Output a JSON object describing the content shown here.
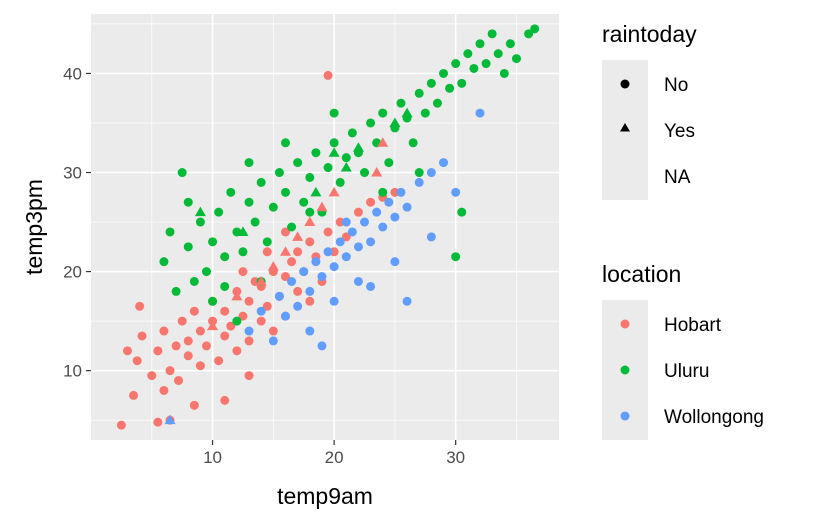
{
  "chart_data": {
    "type": "scatter",
    "title": "",
    "xlabel": "temp9am",
    "ylabel": "temp3pm",
    "xlim": [
      0,
      38.5
    ],
    "ylim": [
      3,
      46
    ],
    "xticks": [
      10,
      20,
      30
    ],
    "yticks": [
      10,
      20,
      30,
      40
    ],
    "grid": true,
    "legend_placement": "right",
    "color_legend": {
      "title": "location",
      "entries": [
        {
          "label": "Hobart",
          "color": "#F8766D"
        },
        {
          "label": "Uluru",
          "color": "#00BA38"
        },
        {
          "label": "Wollongong",
          "color": "#619CFF"
        }
      ]
    },
    "shape_legend": {
      "title": "raintoday",
      "entries": [
        {
          "label": "No",
          "shape": "circle"
        },
        {
          "label": "Yes",
          "shape": "triangle"
        },
        {
          "label": "NA",
          "shape": "none"
        }
      ]
    },
    "series": [
      {
        "name": "Hobart",
        "color": "#F8766D",
        "points": [
          [
            2.5,
            4.5
          ],
          [
            3.5,
            7.5
          ],
          [
            3.8,
            11
          ],
          [
            4.2,
            13.5
          ],
          [
            5,
            9.5
          ],
          [
            5.5,
            12
          ],
          [
            6,
            14
          ],
          [
            6.5,
            10
          ],
          [
            6.5,
            5
          ],
          [
            7,
            12.5
          ],
          [
            7.2,
            9
          ],
          [
            7.5,
            15
          ],
          [
            8,
            11.5
          ],
          [
            8,
            13
          ],
          [
            8.5,
            16
          ],
          [
            9,
            10.5
          ],
          [
            9,
            14
          ],
          [
            9.5,
            12.5
          ],
          [
            10,
            15
          ],
          [
            10,
            17
          ],
          [
            10.5,
            11
          ],
          [
            11,
            13.5
          ],
          [
            11,
            16
          ],
          [
            11.5,
            14.5
          ],
          [
            12,
            18
          ],
          [
            12,
            12
          ],
          [
            12.5,
            15.5
          ],
          [
            13,
            17
          ],
          [
            13,
            13
          ],
          [
            13.5,
            19
          ],
          [
            14,
            15
          ],
          [
            14,
            18.5
          ],
          [
            14.5,
            16.5
          ],
          [
            15,
            20
          ],
          [
            15,
            14
          ],
          [
            15.5,
            17.5
          ],
          [
            16,
            19.5
          ],
          [
            16,
            15.5
          ],
          [
            16.5,
            21
          ],
          [
            17,
            18
          ],
          [
            17,
            22
          ],
          [
            17.5,
            20
          ],
          [
            18,
            17
          ],
          [
            18,
            23
          ],
          [
            18.5,
            21.5
          ],
          [
            19,
            19
          ],
          [
            19.5,
            24
          ],
          [
            20,
            22
          ],
          [
            20.5,
            25
          ],
          [
            21,
            23.5
          ],
          [
            22,
            26
          ],
          [
            23,
            27
          ],
          [
            24,
            27.5
          ],
          [
            25,
            28
          ],
          [
            19.5,
            39.8
          ],
          [
            11,
            7
          ],
          [
            5.5,
            4.8
          ],
          [
            4,
            16.5
          ],
          [
            3,
            12
          ],
          [
            6,
            8
          ],
          [
            8.5,
            6.5
          ],
          [
            12.5,
            20
          ],
          [
            14.5,
            22
          ],
          [
            16,
            24
          ],
          [
            13,
            9.5
          ]
        ]
      },
      {
        "name": "Uluru",
        "color": "#00BA38",
        "points": [
          [
            6,
            21
          ],
          [
            6.5,
            24
          ],
          [
            7,
            18
          ],
          [
            8,
            22.5
          ],
          [
            8.5,
            19
          ],
          [
            9,
            25
          ],
          [
            9.5,
            20
          ],
          [
            10,
            23
          ],
          [
            10.5,
            26
          ],
          [
            11,
            21.5
          ],
          [
            11.5,
            28
          ],
          [
            12,
            24
          ],
          [
            12.5,
            22
          ],
          [
            13,
            27
          ],
          [
            13.5,
            25
          ],
          [
            14,
            29
          ],
          [
            14.5,
            23
          ],
          [
            15,
            26.5
          ],
          [
            15.5,
            30
          ],
          [
            16,
            28
          ],
          [
            16.5,
            24.5
          ],
          [
            17,
            31
          ],
          [
            17.5,
            27
          ],
          [
            18,
            29.5
          ],
          [
            18.5,
            32
          ],
          [
            19,
            26
          ],
          [
            19.5,
            30.5
          ],
          [
            20,
            33
          ],
          [
            20.5,
            29
          ],
          [
            21,
            31.5
          ],
          [
            21.5,
            34
          ],
          [
            22,
            32
          ],
          [
            22.5,
            30
          ],
          [
            23,
            35
          ],
          [
            23.5,
            33
          ],
          [
            24,
            36
          ],
          [
            24.5,
            31
          ],
          [
            25,
            34.5
          ],
          [
            25.5,
            37
          ],
          [
            26,
            35.5
          ],
          [
            26.5,
            33
          ],
          [
            27,
            38
          ],
          [
            27.5,
            36
          ],
          [
            28,
            39
          ],
          [
            28.5,
            37
          ],
          [
            29,
            40
          ],
          [
            29.5,
            38.5
          ],
          [
            30,
            41
          ],
          [
            30.5,
            39
          ],
          [
            31,
            42
          ],
          [
            31.5,
            40.5
          ],
          [
            32,
            43
          ],
          [
            32.5,
            41
          ],
          [
            33,
            44
          ],
          [
            33.5,
            42
          ],
          [
            34,
            40
          ],
          [
            34.5,
            43
          ],
          [
            35,
            41.5
          ],
          [
            36,
            44
          ],
          [
            36.5,
            44.5
          ],
          [
            30,
            21.5
          ],
          [
            12,
            15
          ],
          [
            10,
            17
          ],
          [
            14,
            19
          ],
          [
            8,
            27
          ],
          [
            7.5,
            30
          ],
          [
            16,
            33
          ],
          [
            13,
            31
          ],
          [
            20,
            36
          ],
          [
            18,
            26
          ],
          [
            11,
            18.5
          ],
          [
            24,
            28
          ],
          [
            30.5,
            26
          ],
          [
            27,
            30
          ]
        ]
      },
      {
        "name": "Wollongong",
        "color": "#619CFF",
        "points": [
          [
            13,
            14
          ],
          [
            14,
            16
          ],
          [
            15,
            13
          ],
          [
            15.5,
            17.5
          ],
          [
            16,
            15.5
          ],
          [
            16.5,
            19
          ],
          [
            17,
            16.5
          ],
          [
            17.5,
            20
          ],
          [
            18,
            18
          ],
          [
            18.5,
            21
          ],
          [
            19,
            19.5
          ],
          [
            19.5,
            22
          ],
          [
            20,
            20.5
          ],
          [
            20.5,
            23
          ],
          [
            21,
            21.5
          ],
          [
            21.5,
            24
          ],
          [
            22,
            22.5
          ],
          [
            22.5,
            25
          ],
          [
            23,
            23
          ],
          [
            23.5,
            26
          ],
          [
            24,
            24.5
          ],
          [
            24.5,
            27
          ],
          [
            25,
            25.5
          ],
          [
            25.5,
            28
          ],
          [
            26,
            26.5
          ],
          [
            27,
            29
          ],
          [
            28,
            30
          ],
          [
            29,
            31
          ],
          [
            20,
            17
          ],
          [
            22,
            19
          ],
          [
            23,
            18.5
          ],
          [
            25,
            21
          ],
          [
            26,
            17
          ],
          [
            28,
            23.5
          ],
          [
            30,
            28
          ],
          [
            32,
            36
          ],
          [
            18,
            14
          ],
          [
            21,
            25
          ],
          [
            19,
            12.5
          ]
        ]
      }
    ],
    "triangle_points": [
      [
        6.5,
        5
      ],
      [
        10,
        14.5
      ],
      [
        12,
        17.5
      ],
      [
        14,
        19
      ],
      [
        15,
        20.5
      ],
      [
        16,
        22
      ],
      [
        17,
        23.5
      ],
      [
        18,
        25
      ],
      [
        19,
        26.5
      ],
      [
        20,
        28
      ],
      [
        21,
        30.5
      ],
      [
        22,
        32.5
      ],
      [
        23.5,
        30
      ],
      [
        24,
        33
      ],
      [
        25,
        35
      ],
      [
        26,
        36
      ],
      [
        12.5,
        24
      ],
      [
        20,
        32
      ],
      [
        18.5,
        28
      ],
      [
        9,
        26
      ]
    ]
  }
}
